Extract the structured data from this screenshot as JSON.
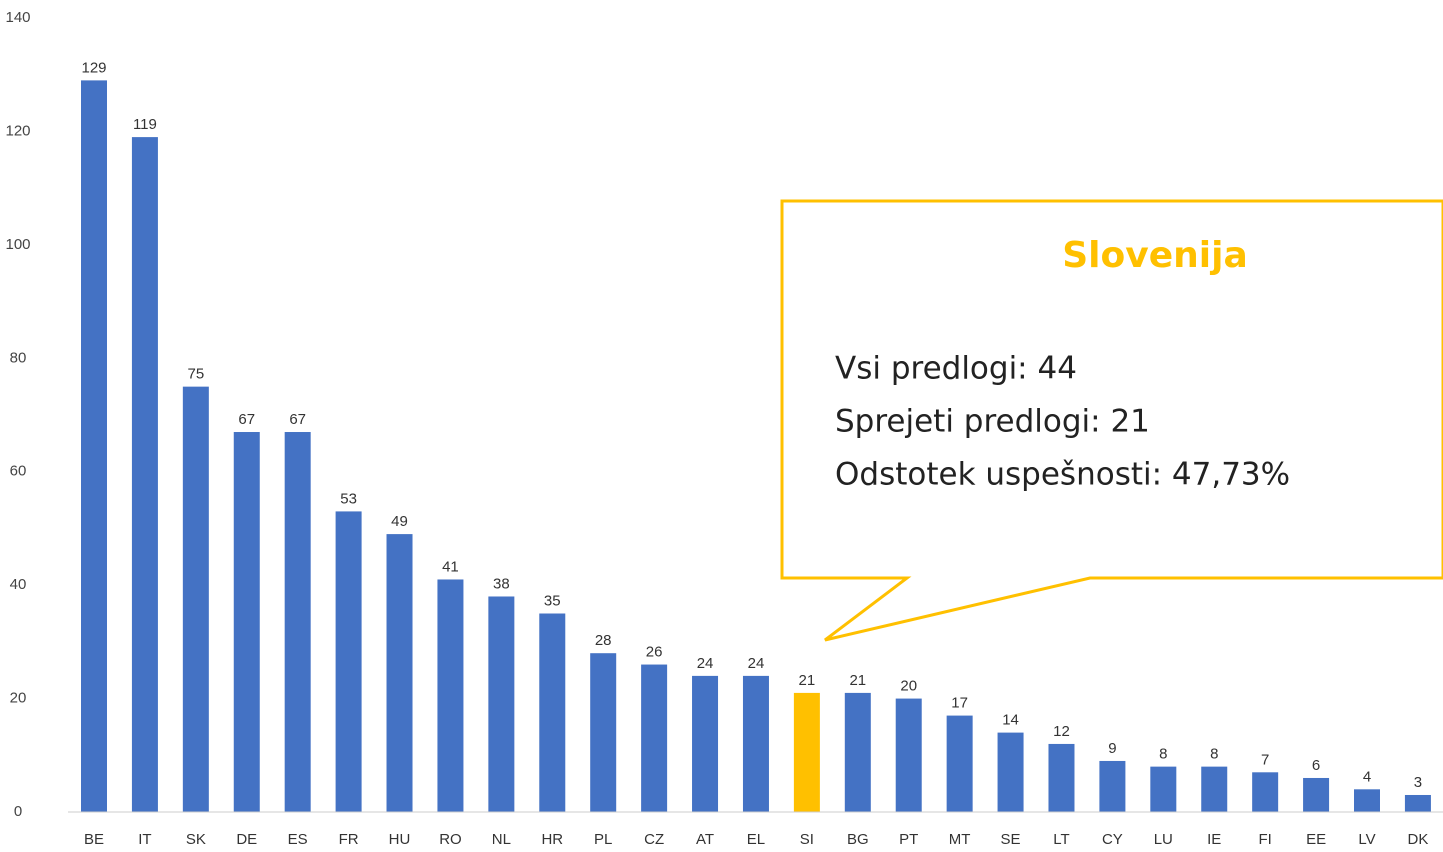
{
  "chart_data": {
    "type": "bar",
    "categories": [
      "BE",
      "IT",
      "SK",
      "DE",
      "ES",
      "FR",
      "HU",
      "RO",
      "NL",
      "HR",
      "PL",
      "CZ",
      "AT",
      "EL",
      "SI",
      "BG",
      "PT",
      "MT",
      "SE",
      "LT",
      "CY",
      "LU",
      "IE",
      "FI",
      "EE",
      "LV",
      "DK"
    ],
    "values": [
      129,
      119,
      75,
      67,
      67,
      53,
      49,
      41,
      38,
      35,
      28,
      26,
      24,
      24,
      21,
      21,
      20,
      17,
      14,
      12,
      9,
      8,
      8,
      7,
      6,
      4,
      3
    ],
    "colors": [
      "#4472c4",
      "#4472c4",
      "#4472c4",
      "#4472c4",
      "#4472c4",
      "#4472c4",
      "#4472c4",
      "#4472c4",
      "#4472c4",
      "#4472c4",
      "#4472c4",
      "#4472c4",
      "#4472c4",
      "#4472c4",
      "#ffc000",
      "#4472c4",
      "#4472c4",
      "#4472c4",
      "#4472c4",
      "#4472c4",
      "#4472c4",
      "#4472c4",
      "#4472c4",
      "#4472c4",
      "#4472c4",
      "#4472c4",
      "#4472c4"
    ],
    "ylim": [
      0,
      140
    ],
    "yticks": [
      0,
      20,
      40,
      60,
      80,
      100,
      120,
      140
    ],
    "grid": false,
    "annotation": {
      "title": "Slovenija",
      "lines": [
        "Vsi predlogi: 44",
        "Sprejeti predlogi: 21",
        "Odstotek uspešnosti: 47,73%"
      ]
    }
  }
}
